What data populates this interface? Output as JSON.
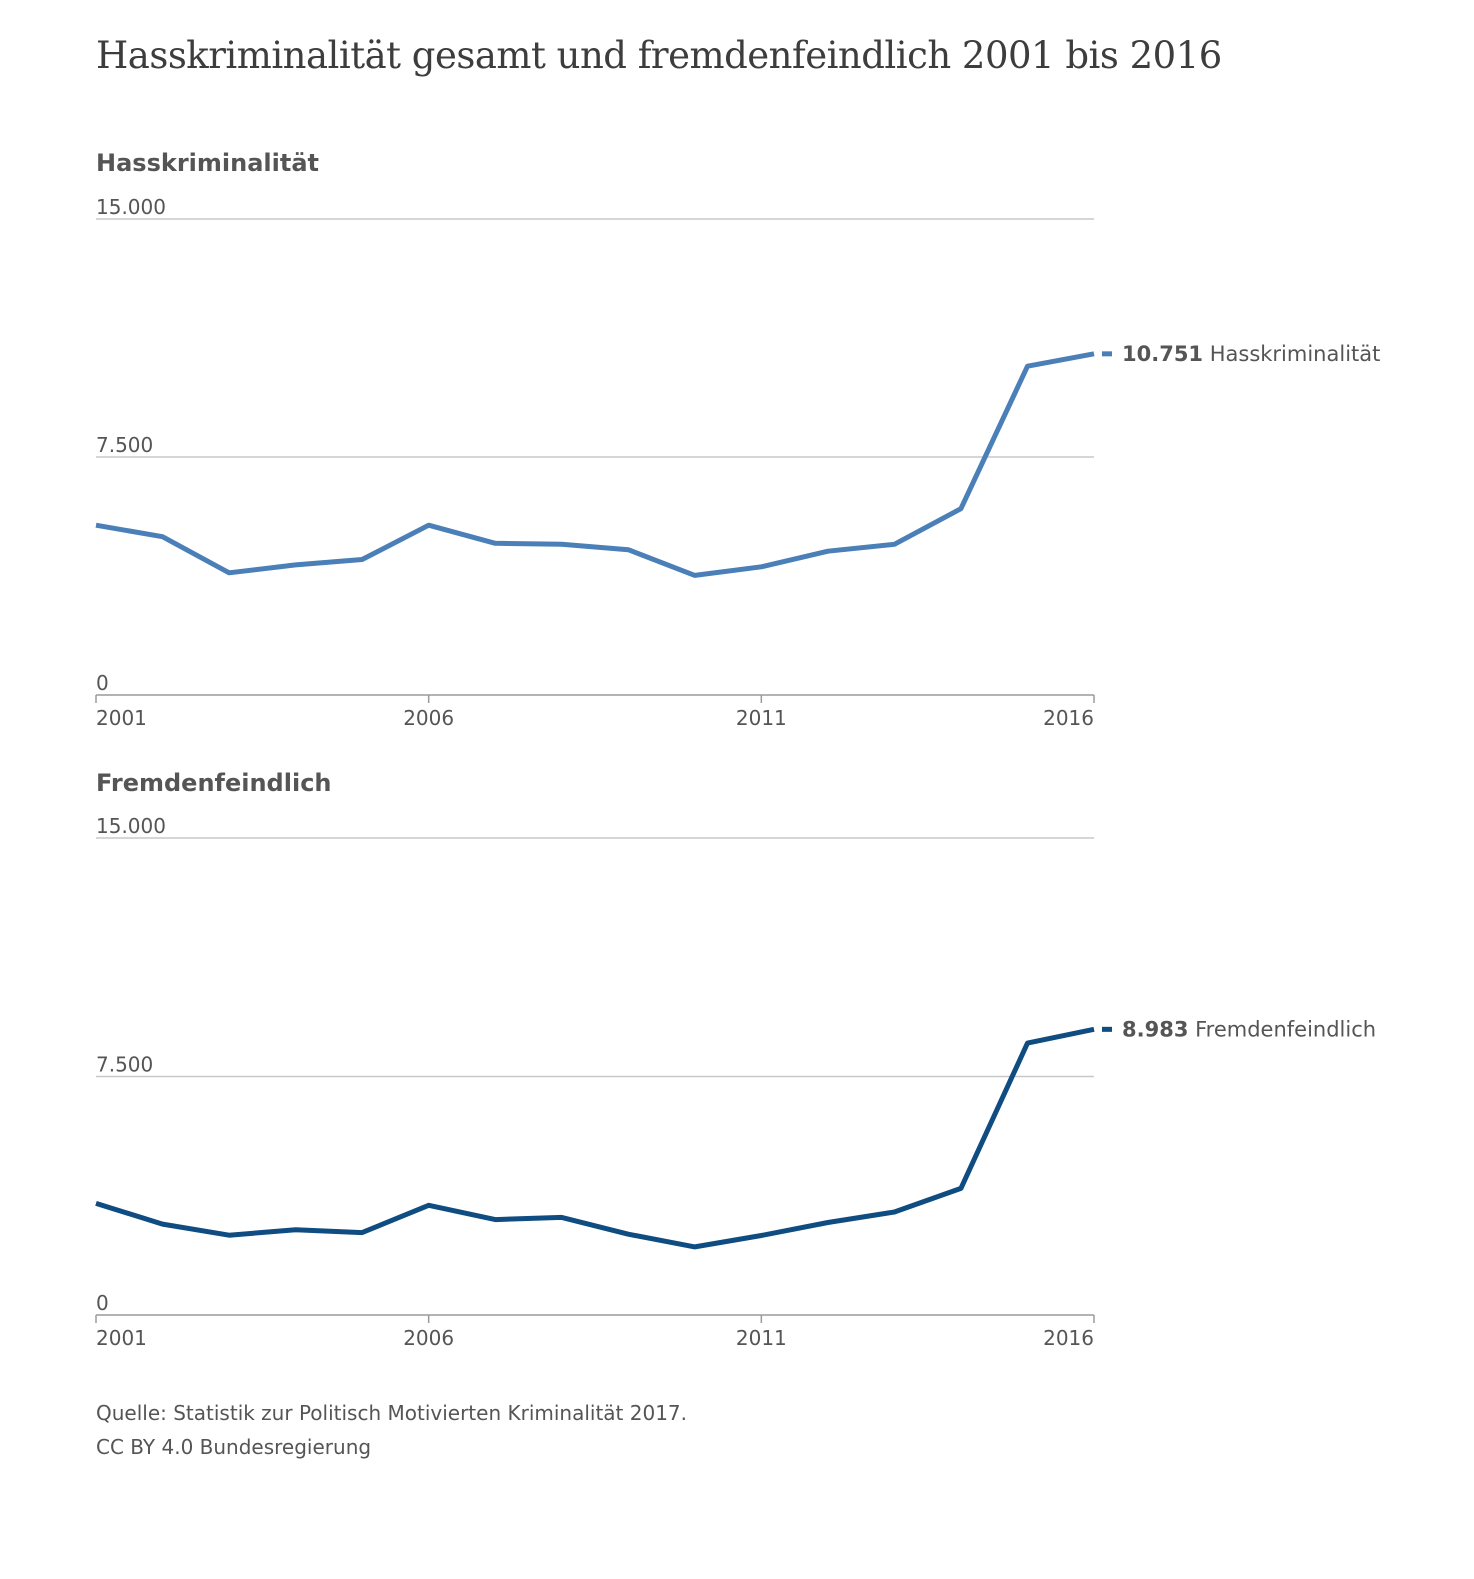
{
  "title": "Hasskriminalität gesamt und fremdenfeindlich 2001 bis 2016",
  "chart_data": [
    {
      "type": "line",
      "title": "Hasskriminalität",
      "x": [
        2001,
        2002,
        2003,
        2004,
        2005,
        2006,
        2007,
        2008,
        2009,
        2010,
        2011,
        2012,
        2013,
        2014,
        2015,
        2016
      ],
      "x_tick_labels": [
        "2001",
        "2006",
        "2011",
        "2016"
      ],
      "y_tick_labels": [
        "15.000",
        "7.500",
        "0"
      ],
      "ylim": [
        0,
        15000
      ],
      "grid": true,
      "series": [
        {
          "name": "Hasskriminalität",
          "color": "#4a7fb8",
          "values": [
            5350,
            4990,
            3850,
            4100,
            4270,
            5350,
            4780,
            4750,
            4580,
            3770,
            4040,
            4530,
            4750,
            5870,
            10360,
            10751
          ],
          "end_value_label": "10.751"
        }
      ]
    },
    {
      "type": "line",
      "title": "Fremdenfeindlich",
      "x": [
        2001,
        2002,
        2003,
        2004,
        2005,
        2006,
        2007,
        2008,
        2009,
        2010,
        2011,
        2012,
        2013,
        2014,
        2015,
        2016
      ],
      "x_tick_labels": [
        "2001",
        "2006",
        "2011",
        "2016"
      ],
      "y_tick_labels": [
        "15.000",
        "7.500",
        "0"
      ],
      "ylim": [
        0,
        15000
      ],
      "grid": true,
      "series": [
        {
          "name": "Fremdenfeindlich",
          "color": "#0f4c81",
          "values": [
            3510,
            2860,
            2510,
            2680,
            2590,
            3450,
            3000,
            3070,
            2540,
            2140,
            2500,
            2910,
            3240,
            3980,
            8550,
            8983
          ],
          "end_value_label": "8.983"
        }
      ]
    }
  ],
  "footer": {
    "source": "Quelle: Statistik zur Politisch Motivierten Kriminalität 2017.",
    "license": "CC BY 4.0 Bundesregierung"
  }
}
